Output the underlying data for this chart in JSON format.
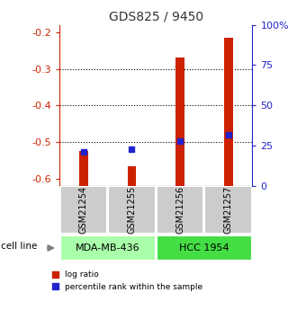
{
  "title": "GDS825 / 9450",
  "samples": [
    "GSM21254",
    "GSM21255",
    "GSM21256",
    "GSM21257"
  ],
  "log_ratio": [
    -0.525,
    -0.565,
    -0.27,
    -0.215
  ],
  "percentile_rank": [
    21,
    23,
    28,
    32
  ],
  "cell_lines": [
    {
      "label": "MDA-MB-436",
      "samples": [
        0,
        1
      ],
      "color": "#aaffaa"
    },
    {
      "label": "HCC 1954",
      "samples": [
        2,
        3
      ],
      "color": "#44dd44"
    }
  ],
  "ylim_left": [
    -0.62,
    -0.18
  ],
  "ylim_right": [
    0,
    100
  ],
  "left_ticks": [
    -0.6,
    -0.5,
    -0.4,
    -0.3,
    -0.2
  ],
  "right_ticks": [
    0,
    25,
    50,
    75,
    100
  ],
  "right_tick_labels": [
    "0",
    "25",
    "50",
    "75",
    "100%"
  ],
  "bar_color_red": "#cc2200",
  "bar_color_blue": "#2222cc",
  "title_color": "#333333",
  "left_axis_color": "#cc2200",
  "right_axis_color": "#2222cc",
  "grid_color": "#333333",
  "sample_box_color": "#cccccc"
}
